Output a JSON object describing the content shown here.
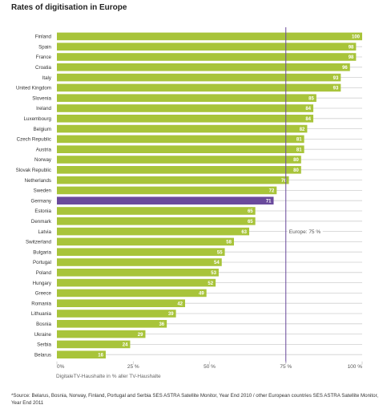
{
  "title": "Rates of digitisation in Europe",
  "xlabel": "DigitaleTV-Haushalte in % aller TV-Haushalte",
  "footnote": "*Source: Belarus, Bosnia, Norway, Finland, Portugal and Serbia SES ASTRA Satellite Monitor, Year End 2010 / other European countries SES ASTRA Satellite Monitor, Year End 2011",
  "colors": {
    "bar": "#a8c43a",
    "highlight": "#6a4a9c",
    "reference": "#6a4a9c",
    "grid": "#cfcfcf"
  },
  "chart_data": {
    "type": "bar",
    "orientation": "horizontal",
    "title": "Rates of digitisation in Europe",
    "xlabel": "DigitaleTV-Haushalte in % aller TV-Haushalte",
    "xlim": [
      0,
      100
    ],
    "xticks": [
      "0%",
      "25 %",
      "50 %",
      "75 %",
      "100 %"
    ],
    "categories": [
      "Finland",
      "Spain",
      "France",
      "Croatia",
      "Italy",
      "United Kingdom",
      "Slovenia",
      "Ireland",
      "Luxembourg",
      "Belgium",
      "Czech Republic",
      "Austria",
      "Norway",
      "Slovak Republic",
      "Netherlands",
      "Sweden",
      "Germany",
      "Estonia",
      "Denmark",
      "Latvia",
      "Switzerland",
      "Bulgaria",
      "Portugal",
      "Poland",
      "Hungary",
      "Greece",
      "Romania",
      "Lithuania",
      "Bosnia",
      "Ukraine",
      "Serbia",
      "Belarus"
    ],
    "values": [
      100,
      98,
      98,
      96,
      93,
      93,
      85,
      84,
      84,
      82,
      81,
      81,
      80,
      80,
      76,
      72,
      71,
      65,
      65,
      63,
      58,
      55,
      54,
      53,
      52,
      49,
      42,
      39,
      36,
      29,
      24,
      16
    ],
    "highlight": "Germany",
    "reference_line": {
      "value": 75,
      "label": "Europe: 75 %"
    },
    "grid": true
  }
}
